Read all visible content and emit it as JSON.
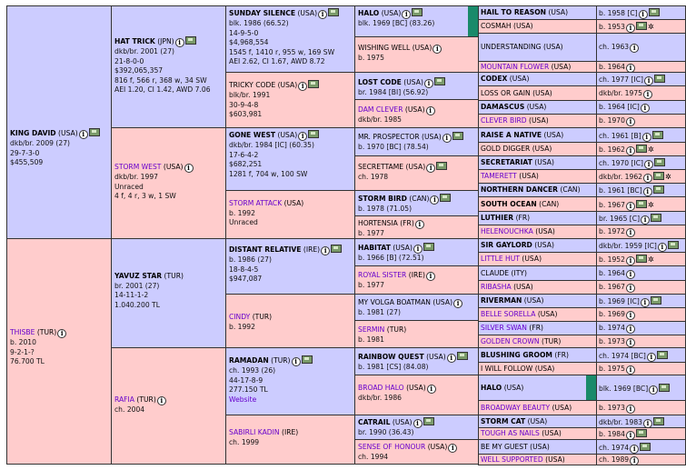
{
  "pedigree": {
    "gen1": [
      {
        "name": "KING DAVID",
        "country": "(USA)",
        "lines": [
          "dkb/br. 2009 (27)",
          "29-7-3-0",
          "$455,509"
        ]
      },
      {
        "name": "THISBE",
        "country": "(TUR)",
        "lines": [
          "b. 2010",
          "9-2-1-?",
          "76.700 TL"
        ]
      }
    ],
    "gen2": [
      {
        "name": "HAT TRICK",
        "country": "(JPN)",
        "lines": [
          "dkb/br. 2001 (27)",
          "21-8-0-0",
          "$392,065,357",
          "816 f, 566 r, 368 w, 34 SW",
          "AEI 1.20, CI 1.42, AWD 7.06"
        ]
      },
      {
        "name": "STORM WEST",
        "country": "(USA)",
        "lines": [
          "dkb/br. 1997",
          "Unraced",
          "4 f, 4 r, 3 w, 1 SW"
        ]
      },
      {
        "name": "YAVUZ STAR",
        "country": "(TUR)",
        "lines": [
          "br. 2001 (27)",
          "14-11-1-2",
          "1.040.200 TL"
        ]
      },
      {
        "name": "RAFIA",
        "country": "(TUR)",
        "lines": [
          "ch. 2004"
        ]
      }
    ],
    "gen3": [
      {
        "name": "SUNDAY SILENCE",
        "country": "(USA)",
        "lines": [
          "blk. 1986 (66.52)",
          "14-9-5-0",
          "$4,968,554",
          "1545 f, 1410 r, 955 w, 169 SW",
          "AEI 2.62, CI 1.67, AWD 8.72"
        ]
      },
      {
        "name": "TRICKY CODE",
        "country": "(USA)",
        "lines": [
          "blk/br. 1991",
          "30-9-4-8",
          "$603,981"
        ]
      },
      {
        "name": "GONE WEST",
        "country": "(USA)",
        "lines": [
          "dkb/br. 1984 [IC] (60.35)",
          "17-6-4-2",
          "$682,251",
          "1281 f, 704 w, 100 SW"
        ]
      },
      {
        "name": "STORM ATTACK",
        "country": "(USA)",
        "lines": [
          "b. 1992",
          "Unraced"
        ]
      },
      {
        "name": "DISTANT RELATIVE",
        "country": "(IRE)",
        "lines": [
          "b. 1986 (27)",
          "18-8-4-5",
          "$947,087"
        ]
      },
      {
        "name": "CINDY",
        "country": "(TUR)",
        "lines": [
          "b. 1992"
        ]
      },
      {
        "name": "RAMADAN",
        "country": "(TUR)",
        "lines": [
          "ch. 1993 (26)",
          "44-17-8-9",
          "277.150 TL"
        ],
        "link": "Website"
      },
      {
        "name": "SABIRLI KADIN",
        "country": "(IRE)",
        "lines": [
          "ch. 1999"
        ]
      }
    ],
    "gen4": [
      {
        "name": "HALO",
        "country": "(USA)",
        "line": "blk. 1969 [BC] (83.26)"
      },
      {
        "name": "WISHING WELL",
        "country": "(USA)",
        "line": "b. 1975"
      },
      {
        "name": "LOST CODE",
        "country": "(USA)",
        "line": "br. 1984 [BI] (56.92)"
      },
      {
        "name": "DAM CLEVER",
        "country": "(USA)",
        "line": "dkb/br. 1985"
      },
      {
        "name": "MR. PROSPECTOR",
        "country": "(USA)",
        "line": "b. 1970 [BC] (78.54)"
      },
      {
        "name": "SECRETTAME",
        "country": "(USA)",
        "line": "ch. 1978"
      },
      {
        "name": "STORM BIRD",
        "country": "(CAN)",
        "line": "b. 1978 (71.05)"
      },
      {
        "name": "HORTENSIA",
        "country": "(FR)",
        "line": "b. 1977"
      },
      {
        "name": "HABITAT",
        "country": "(USA)",
        "line": "b. 1966 [B] (72.51)"
      },
      {
        "name": "ROYAL SISTER",
        "country": "(IRE)",
        "line": "b. 1977"
      },
      {
        "name": "MY VOLGA BOATMAN",
        "country": "(USA)",
        "line": "b. 1981 (27)"
      },
      {
        "name": "SERMIN",
        "country": "(TUR)",
        "line": "b. 1981"
      },
      {
        "name": "RAINBOW QUEST",
        "country": "(USA)",
        "line": "b. 1981 [CS] (84.08)"
      },
      {
        "name": "BROAD HALO",
        "country": "(USA)",
        "line": "dkb/br. 1986"
      },
      {
        "name": "CATRAIL",
        "country": "(USA)",
        "line": "br. 1990 (36.43)"
      },
      {
        "name": "SENSE OF HONOUR",
        "country": "(USA)",
        "line": "ch. 1994"
      }
    ],
    "gen5": [
      {
        "name": "HAIL TO REASON",
        "country": "(USA)",
        "detail": "b. 1958 [C]"
      },
      {
        "name": "COSMAH",
        "country": "(USA)",
        "detail": "b. 1953"
      },
      {
        "name": "UNDERSTANDING",
        "country": "(USA)",
        "detail": "ch. 1963"
      },
      {
        "name": "MOUNTAIN FLOWER",
        "country": "(USA)",
        "detail": "b. 1964"
      },
      {
        "name": "CODEX",
        "country": "(USA)",
        "detail": "ch. 1977 [IC]"
      },
      {
        "name": "LOSS OR GAIN",
        "country": "(USA)",
        "detail": "dkb/br. 1975"
      },
      {
        "name": "DAMASCUS",
        "country": "(USA)",
        "detail": "b. 1964 [IC]"
      },
      {
        "name": "CLEVER BIRD",
        "country": "(USA)",
        "detail": "b. 1970"
      },
      {
        "name": "RAISE A NATIVE",
        "country": "(USA)",
        "detail": "ch. 1961 [B]"
      },
      {
        "name": "GOLD DIGGER",
        "country": "(USA)",
        "detail": "b. 1962"
      },
      {
        "name": "SECRETARIAT",
        "country": "(USA)",
        "detail": "ch. 1970 [IC]"
      },
      {
        "name": "TAMERETT",
        "country": "(USA)",
        "detail": "dkb/br. 1962"
      },
      {
        "name": "NORTHERN DANCER",
        "country": "(CAN)",
        "detail": "b. 1961 [BC]"
      },
      {
        "name": "SOUTH OCEAN",
        "country": "(CAN)",
        "detail": "b. 1967"
      },
      {
        "name": "LUTHIER",
        "country": "(FR)",
        "detail": "br. 1965 [C]"
      },
      {
        "name": "HELENOUCHKA",
        "country": "(USA)",
        "detail": "b. 1972"
      },
      {
        "name": "SIR GAYLORD",
        "country": "(USA)",
        "detail": "dkb/br. 1959 [IC]"
      },
      {
        "name": "LITTLE HUT",
        "country": "(USA)",
        "detail": "b. 1952"
      },
      {
        "name": "CLAUDE",
        "country": "(ITY)",
        "detail": "b. 1964"
      },
      {
        "name": "RIBASHA",
        "country": "(USA)",
        "detail": "b. 1967"
      },
      {
        "name": "RIVERMAN",
        "country": "(USA)",
        "detail": "b. 1969 [IC]"
      },
      {
        "name": "BELLE SORELLA",
        "country": "(USA)",
        "detail": "b. 1969"
      },
      {
        "name": "SILVER SWAN",
        "country": "(FR)",
        "detail": "b. 1974"
      },
      {
        "name": "GOLDEN CROWN",
        "country": "(TUR)",
        "detail": "b. 1973"
      },
      {
        "name": "BLUSHING GROOM",
        "country": "(FR)",
        "detail": "ch. 1974 [BC]"
      },
      {
        "name": "I WILL FOLLOW",
        "country": "(USA)",
        "detail": "b. 1975"
      },
      {
        "name": "HALO",
        "country": "(USA)",
        "detail": "blk. 1969 [BC]"
      },
      {
        "name": "BROADWAY BEAUTY",
        "country": "(USA)",
        "detail": "b. 1973"
      },
      {
        "name": "STORM CAT",
        "country": "(USA)",
        "detail": "dkb/br. 1983"
      },
      {
        "name": "TOUGH AS NAILS",
        "country": "(USA)",
        "detail": "b. 1984"
      },
      {
        "name": "BE MY GUEST",
        "country": "(USA)",
        "detail": "ch. 1974"
      },
      {
        "name": "WELL SUPPORTED",
        "country": "(USA)",
        "detail": "ch. 1989"
      }
    ]
  },
  "icons": {
    "info": "info-icon",
    "photo": "photo-icon",
    "star": "star-icon"
  }
}
